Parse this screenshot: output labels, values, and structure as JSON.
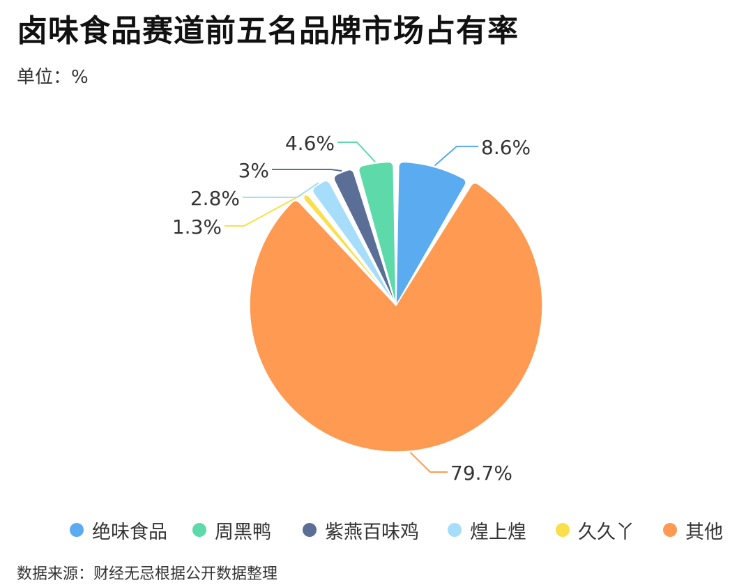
{
  "title": "卤味食品赛道前五名品牌市场占有率",
  "unit_label": "单位：%",
  "source": "数据来源：财经无忌根据公开数据整理",
  "chart_data": {
    "type": "pie",
    "title": "卤味食品赛道前五名品牌市场占有率",
    "unit": "%",
    "legend_position": "bottom",
    "slices": [
      {
        "name": "绝味食品",
        "value": 8.6,
        "label": "8.6%",
        "color": "#5AABF0"
      },
      {
        "name": "其他",
        "value": 79.7,
        "label": "79.7%",
        "color": "#FF9A52"
      },
      {
        "name": "久久丫",
        "value": 1.3,
        "label": "1.3%",
        "color": "#F9DF4C"
      },
      {
        "name": "煌上煌",
        "value": 2.8,
        "label": "2.8%",
        "color": "#A6DDFA"
      },
      {
        "name": "紫燕百味鸡",
        "value": 3,
        "label": "3%",
        "color": "#5A6E96"
      },
      {
        "name": "周黑鸭",
        "value": 4.6,
        "label": "4.6%",
        "color": "#5ED9AA"
      }
    ],
    "legend": [
      {
        "name": "绝味食品",
        "color": "#5AABF0"
      },
      {
        "name": "周黑鸭",
        "color": "#5ED9AA"
      },
      {
        "name": "紫燕百味鸡",
        "color": "#5A6E96"
      },
      {
        "name": "煌上煌",
        "color": "#A6DDFA"
      },
      {
        "name": "久久丫",
        "color": "#F9DF4C"
      },
      {
        "name": "其他",
        "color": "#FF9A52"
      }
    ]
  }
}
